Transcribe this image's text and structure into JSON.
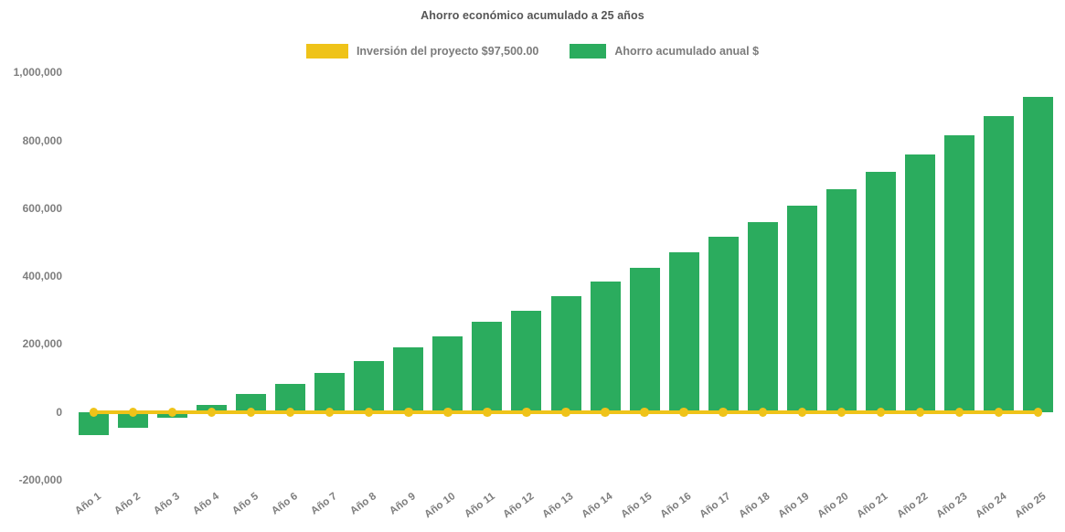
{
  "title": "Ahorro económico acumulado a 25 años",
  "colors": {
    "bar_green": "#2BAC5E",
    "line_yellow": "#EFC319",
    "tick_gray": "#7e7e7e",
    "title_gray": "#555555"
  },
  "legend": {
    "investment": {
      "label": "Inversión del proyecto $97,500.00",
      "color": "#EFC319"
    },
    "savings": {
      "label": "Ahorro acumulado anual $",
      "color": "#2BAC5E"
    }
  },
  "chart_data": {
    "type": "bar",
    "title": "Ahorro económico acumulado a 25 años",
    "xlabel": "",
    "ylabel": "",
    "categories": [
      "Año 1",
      "Año 2",
      "Año 3",
      "Año 4",
      "Año 5",
      "Año 6",
      "Año 7",
      "Año 8",
      "Año 9",
      "Año 10",
      "Año 11",
      "Año 12",
      "Año 13",
      "Año 14",
      "Año 15",
      "Año 16",
      "Año 17",
      "Año 18",
      "Año 19",
      "Año 20",
      "Año 21",
      "Año 22",
      "Año 23",
      "Año 24",
      "Año 25"
    ],
    "series": [
      {
        "name": "Ahorro acumulado anual $",
        "type": "bar",
        "color": "#2BAC5E",
        "values": [
          -68000,
          -47000,
          -16000,
          22000,
          52000,
          83000,
          116000,
          150000,
          190000,
          223000,
          265000,
          299000,
          342000,
          383000,
          424000,
          470000,
          515000,
          560000,
          608000,
          656000,
          707000,
          759000,
          815000,
          871000,
          928000
        ]
      },
      {
        "name": "Inversión del proyecto $97,500.00",
        "type": "line",
        "color": "#EFC319",
        "marker": "circle",
        "investment_amount_label": "$97,500.00",
        "values": [
          0,
          0,
          0,
          0,
          0,
          0,
          0,
          0,
          0,
          0,
          0,
          0,
          0,
          0,
          0,
          0,
          0,
          0,
          0,
          0,
          0,
          0,
          0,
          0,
          0
        ]
      }
    ],
    "ylim": [
      -200000,
      1000000
    ],
    "yticks": [
      1000000,
      800000,
      600000,
      400000,
      200000,
      0,
      -200000
    ],
    "grid": false,
    "legend_position": "top-center",
    "x_tick_rotation_deg": -36
  }
}
